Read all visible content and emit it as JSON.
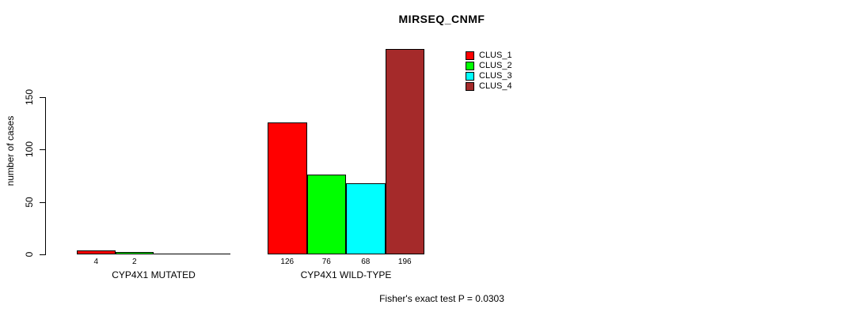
{
  "chart_data": {
    "type": "bar",
    "title": "MIRSEQ_CNMF",
    "xlabel": "",
    "ylabel": "number of cases",
    "groups": [
      "CYP4X1 MUTATED",
      "CYP4X1 WILD-TYPE"
    ],
    "series": [
      {
        "name": "CLUS_1",
        "color": "#ff0000",
        "values": [
          4,
          126
        ]
      },
      {
        "name": "CLUS_2",
        "color": "#00ff00",
        "values": [
          2,
          76
        ]
      },
      {
        "name": "CLUS_3",
        "color": "#00ffff",
        "values": [
          0,
          68
        ]
      },
      {
        "name": "CLUS_4",
        "color": "#a52a2a",
        "values": [
          0,
          196
        ]
      }
    ],
    "yticks": [
      0,
      50,
      100,
      150
    ],
    "ylim": [
      0,
      150
    ],
    "grid": false,
    "legend_position": "top-right",
    "bar_value_labels_shown": true,
    "zero_value_labels_hidden": true,
    "annotation": "Fisher's exact test P = 0.0303"
  }
}
